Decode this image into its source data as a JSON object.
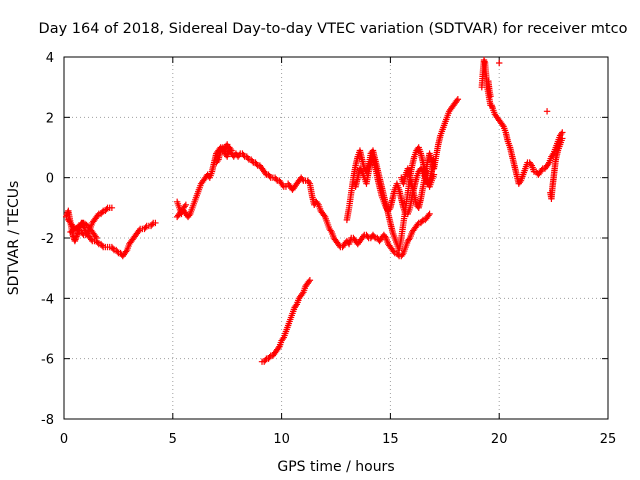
{
  "chart_data": {
    "type": "scatter",
    "title": "Day 164 of 2018, Sidereal Day-to-day VTEC variation (SDTVAR) for receiver mtco",
    "xlabel": "GPS time / hours",
    "ylabel": "SDTVAR / TECUs",
    "xlim": [
      0,
      25
    ],
    "ylim": [
      -8,
      4
    ],
    "xticks": [
      "0",
      "5",
      "10",
      "15",
      "20",
      "25"
    ],
    "yticks": [
      "-8",
      "-6",
      "-4",
      "-2",
      "0",
      "2",
      "4"
    ],
    "grid": true,
    "marker": "plus",
    "color": "#ff0000",
    "series": [
      {
        "x": [
          0.1,
          0.15,
          0.2,
          0.25,
          0.3,
          0.35,
          0.4,
          0.45,
          0.5,
          0.55,
          0.6,
          0.65,
          0.7,
          0.75,
          0.8,
          0.85,
          0.9,
          0.95,
          1.0,
          1.1,
          1.2,
          1.3,
          1.4,
          1.5,
          1.6,
          1.7,
          1.8,
          1.9,
          2.0,
          2.1,
          2.2,
          2.3,
          2.4,
          2.5,
          2.6,
          2.7,
          2.8,
          2.9,
          3.0,
          3.1,
          3.2,
          3.3,
          3.4,
          3.5,
          3.6,
          3.7,
          3.8,
          3.9,
          4.0,
          4.1,
          4.2
        ],
        "y": [
          -1.3,
          -1.2,
          -1.1,
          -1.3,
          -1.5,
          -1.7,
          -1.9,
          -2.0,
          -2.1,
          -2.0,
          -1.9,
          -1.8,
          -1.7,
          -1.6,
          -1.5,
          -1.5,
          -1.6,
          -1.7,
          -1.8,
          -1.9,
          -2.0,
          -2.1,
          -2.1,
          -2.1,
          -2.2,
          -2.2,
          -2.3,
          -2.3,
          -2.3,
          -2.3,
          -2.3,
          -2.4,
          -2.4,
          -2.5,
          -2.5,
          -2.6,
          -2.5,
          -2.4,
          -2.2,
          -2.1,
          -2.0,
          -1.9,
          -1.8,
          -1.7,
          -1.7,
          -1.7,
          -1.6,
          -1.6,
          -1.6,
          -1.5,
          -1.5
        ]
      },
      {
        "x": [
          0.2,
          0.3,
          0.4,
          0.5,
          0.6,
          0.7,
          0.8,
          0.9,
          1.0,
          1.1,
          1.2,
          1.3,
          1.4,
          1.5,
          1.6,
          1.7,
          1.8,
          1.9,
          2.0,
          2.1,
          2.2,
          0.3,
          0.5,
          0.7,
          0.9,
          1.1,
          1.3,
          1.5
        ],
        "y": [
          -1.4,
          -1.5,
          -1.6,
          -1.7,
          -1.7,
          -1.8,
          -1.8,
          -1.9,
          -1.9,
          -1.8,
          -1.7,
          -1.5,
          -1.4,
          -1.3,
          -1.2,
          -1.2,
          -1.1,
          -1.1,
          -1.0,
          -1.0,
          -1.0,
          -1.8,
          -1.7,
          -1.6,
          -1.5,
          -1.6,
          -1.8,
          -2.0
        ]
      },
      {
        "x": [
          5.2,
          5.3,
          5.4,
          5.5,
          5.6,
          5.7,
          5.8,
          5.9,
          6.0,
          6.1,
          6.2,
          6.3,
          6.4,
          6.5,
          6.6,
          6.7,
          6.8,
          6.9,
          7.0,
          7.1,
          7.2,
          7.3,
          7.4,
          7.5,
          7.6,
          7.7,
          7.8,
          7.9,
          8.0,
          8.1,
          8.2,
          8.3,
          8.4,
          8.5,
          8.6,
          8.7,
          8.8,
          8.9,
          9.0,
          9.1,
          9.2,
          9.3,
          9.4,
          9.5,
          9.6,
          9.7,
          9.8,
          9.9,
          10.0,
          10.1,
          10.2
        ],
        "y": [
          -1.3,
          -1.2,
          -1.1,
          -1.1,
          -1.2,
          -1.3,
          -1.2,
          -1.0,
          -0.8,
          -0.6,
          -0.4,
          -0.2,
          -0.1,
          0.0,
          0.1,
          0.0,
          0.2,
          0.5,
          0.8,
          0.9,
          1.0,
          0.9,
          1.0,
          1.1,
          0.9,
          0.8,
          0.7,
          0.8,
          0.7,
          0.8,
          0.8,
          0.7,
          0.7,
          0.6,
          0.6,
          0.5,
          0.5,
          0.4,
          0.4,
          0.3,
          0.2,
          0.1,
          0.1,
          0.0,
          0.0,
          0.0,
          -0.1,
          -0.1,
          -0.2,
          -0.3,
          -0.3
        ]
      },
      {
        "x": [
          5.2,
          5.3,
          5.4,
          5.5,
          5.6,
          7.0,
          7.1,
          7.2,
          7.3,
          7.4,
          7.5,
          7.6,
          7.7
        ],
        "y": [
          -0.8,
          -1.0,
          -1.2,
          -1.0,
          -0.9,
          0.5,
          0.6,
          0.9,
          1.0,
          0.8,
          0.7,
          1.0,
          0.9
        ]
      },
      {
        "x": [
          9.1,
          9.2,
          9.3,
          9.4,
          9.5,
          9.6,
          9.7,
          9.8,
          9.9,
          10.0,
          10.1,
          10.2,
          10.3,
          10.4,
          10.5,
          10.6,
          10.7,
          10.8,
          10.9,
          11.0,
          11.1,
          11.2,
          11.3
        ],
        "y": [
          -6.1,
          -6.1,
          -6.0,
          -6.0,
          -5.9,
          -5.9,
          -5.8,
          -5.7,
          -5.6,
          -5.4,
          -5.3,
          -5.1,
          -4.9,
          -4.7,
          -4.5,
          -4.3,
          -4.2,
          -4.0,
          -3.9,
          -3.8,
          -3.6,
          -3.5,
          -3.4
        ]
      },
      {
        "x": [
          10.3,
          10.4,
          10.5,
          10.6,
          10.7,
          10.8,
          10.9,
          11.0,
          11.1,
          11.2,
          11.3,
          11.4,
          11.5,
          11.6,
          11.7,
          11.8,
          11.9,
          12.0,
          12.1,
          12.2,
          12.3,
          12.4,
          12.5,
          12.6,
          12.7,
          12.8,
          12.9,
          13.0,
          13.1,
          13.2,
          13.3,
          13.4,
          13.5,
          13.6,
          13.7,
          13.8,
          13.9,
          14.0,
          14.1,
          14.2,
          14.3,
          14.4,
          14.5,
          14.6,
          14.7,
          14.8,
          14.9,
          15.0,
          15.1,
          15.2,
          15.3,
          15.4,
          15.5,
          15.6,
          15.7,
          15.8,
          15.9,
          16.0,
          16.1,
          16.2,
          16.3,
          16.4,
          16.5,
          16.6,
          16.7,
          16.8
        ],
        "y": [
          -0.2,
          -0.3,
          -0.4,
          -0.3,
          -0.2,
          -0.1,
          0.0,
          -0.1,
          -0.1,
          -0.1,
          -0.2,
          -0.6,
          -0.9,
          -0.8,
          -0.9,
          -1.1,
          -1.2,
          -1.3,
          -1.5,
          -1.7,
          -1.8,
          -2.0,
          -2.1,
          -2.2,
          -2.3,
          -2.3,
          -2.2,
          -2.1,
          -2.2,
          -2.0,
          -2.0,
          -2.1,
          -2.2,
          -2.1,
          -2.0,
          -1.9,
          -1.9,
          -2.0,
          -2.0,
          -1.9,
          -2.0,
          -2.0,
          -2.1,
          -2.0,
          -1.9,
          -2.0,
          -2.2,
          -2.3,
          -2.4,
          -2.5,
          -2.5,
          -2.6,
          -2.6,
          -2.5,
          -2.3,
          -2.1,
          -2.0,
          -1.8,
          -1.7,
          -1.6,
          -1.5,
          -1.5,
          -1.4,
          -1.4,
          -1.3,
          -1.2
        ]
      },
      {
        "x": [
          13.0,
          13.1,
          13.2,
          13.3,
          13.4,
          13.5,
          13.6,
          13.7,
          13.8,
          13.9,
          14.0,
          14.1,
          14.2,
          14.3,
          14.4,
          14.5,
          14.6,
          14.7,
          14.8,
          14.9,
          15.0,
          15.1,
          15.2,
          15.3,
          15.4,
          15.5,
          15.6,
          15.7,
          15.8,
          15.9,
          16.0,
          16.1,
          16.2,
          16.3,
          16.4,
          16.5,
          16.6,
          16.7,
          16.8,
          16.9,
          17.0
        ],
        "y": [
          -1.4,
          -1.0,
          -0.5,
          0.0,
          0.4,
          0.7,
          0.9,
          0.6,
          0.3,
          0.2,
          0.4,
          0.8,
          0.9,
          0.6,
          0.3,
          0.0,
          -0.3,
          -0.6,
          -0.9,
          -1.2,
          -1.5,
          -1.8,
          -2.0,
          -2.2,
          -2.4,
          -2.0,
          -1.5,
          -1.0,
          -0.5,
          0.0,
          0.4,
          0.7,
          0.9,
          1.0,
          0.8,
          0.5,
          0.2,
          -0.1,
          -0.3,
          -0.1,
          0.1
        ]
      },
      {
        "x": [
          13.4,
          13.5,
          13.6,
          13.7,
          13.8,
          13.9,
          14.0,
          14.1,
          14.2,
          14.3,
          14.4,
          14.5,
          14.6,
          14.7,
          14.8,
          14.9,
          15.0,
          15.1,
          15.2,
          15.3,
          15.4,
          15.5,
          15.6,
          15.7,
          15.8,
          15.9,
          16.0,
          16.1,
          16.2,
          16.3,
          16.4,
          16.5,
          16.6,
          16.7,
          16.8,
          16.9,
          17.0
        ],
        "y": [
          -0.3,
          0.0,
          0.3,
          0.2,
          0.0,
          -0.2,
          0.2,
          0.5,
          0.7,
          0.4,
          0.0,
          -0.3,
          -0.6,
          -0.8,
          -1.0,
          -1.1,
          -1.0,
          -0.7,
          -0.4,
          -0.2,
          -0.4,
          -0.7,
          -1.0,
          -1.2,
          -1.2,
          -1.0,
          -0.6,
          -0.3,
          0.0,
          0.2,
          0.3,
          0.2,
          0.0,
          -0.2,
          -0.1,
          0.2,
          0.5
        ]
      },
      {
        "x": [
          15.5,
          15.6,
          15.7,
          15.8,
          15.9,
          16.0,
          16.1,
          16.2,
          16.3,
          16.4,
          16.5,
          16.6,
          16.7,
          16.8,
          16.9,
          17.0,
          17.1,
          17.2,
          17.3,
          17.4,
          17.5,
          17.6,
          17.7,
          17.8,
          17.9,
          18.0,
          18.1
        ],
        "y": [
          0.0,
          -0.2,
          0.1,
          0.3,
          0.0,
          -0.3,
          -0.6,
          -0.9,
          -1.0,
          -0.7,
          -0.3,
          0.1,
          0.5,
          0.8,
          0.6,
          0.3,
          0.7,
          1.1,
          1.4,
          1.6,
          1.8,
          2.0,
          2.2,
          2.3,
          2.4,
          2.5,
          2.6
        ]
      },
      {
        "x": [
          19.2,
          19.25,
          19.3,
          19.35,
          19.4,
          19.45,
          19.5,
          19.55,
          19.6,
          19.65,
          19.7,
          19.8,
          19.9,
          20.0,
          20.1,
          20.2,
          20.3,
          20.4,
          20.5,
          20.6,
          20.7,
          20.8,
          20.9,
          21.0,
          21.1,
          21.2,
          21.3,
          21.4,
          21.5,
          21.6,
          21.7,
          21.8,
          21.9,
          22.0,
          22.1,
          22.2,
          22.3,
          22.4,
          22.5,
          22.6,
          22.7,
          22.8,
          22.9
        ],
        "y": [
          3.0,
          3.5,
          3.9,
          3.8,
          3.4,
          3.0,
          2.8,
          2.6,
          2.4,
          2.4,
          2.3,
          2.1,
          2.0,
          1.9,
          1.8,
          1.7,
          1.5,
          1.2,
          1.0,
          0.7,
          0.4,
          0.1,
          -0.2,
          -0.1,
          0.1,
          0.3,
          0.5,
          0.5,
          0.4,
          0.2,
          0.2,
          0.1,
          0.2,
          0.3,
          0.3,
          0.4,
          0.5,
          0.7,
          0.8,
          1.0,
          1.2,
          1.4,
          1.5
        ]
      },
      {
        "x": [
          19.5,
          19.55,
          19.6,
          20.0,
          22.2,
          22.35,
          22.4,
          22.45,
          22.5,
          22.55,
          22.6,
          22.7,
          22.8,
          22.9
        ],
        "y": [
          3.2,
          2.9,
          2.7,
          3.8,
          2.2,
          -0.5,
          -0.7,
          -0.3,
          0.0,
          0.3,
          0.6,
          0.9,
          1.1,
          1.3
        ]
      }
    ]
  }
}
